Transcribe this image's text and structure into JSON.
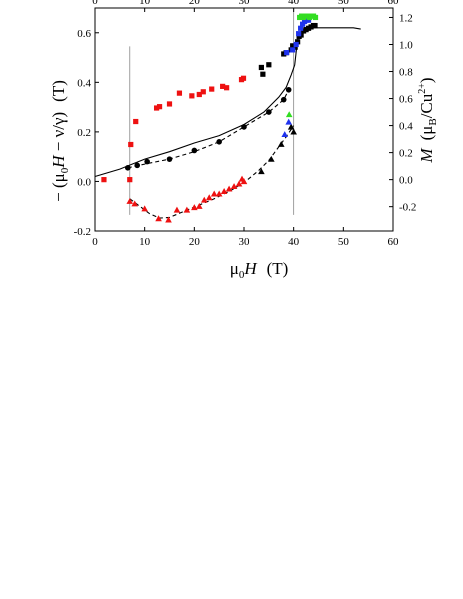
{
  "chart_data": {
    "type": "scatter",
    "title": "",
    "xlabel_parts": [
      "μ",
      "0",
      "H",
      "(T)"
    ],
    "ylabel_left_parts": [
      "− (μ",
      "0",
      "H",
      " − ν/γ)",
      "(T)"
    ],
    "ylabel_right_parts": [
      "M",
      "(μ",
      "B",
      "/Cu",
      "2+",
      ")"
    ],
    "xlim": [
      0,
      60
    ],
    "ylim": [
      -0.2,
      0.7
    ],
    "y2lim": [
      -0.38,
      1.27
    ],
    "x_ticks": [
      "0",
      "10",
      "20",
      "30",
      "40",
      "50",
      "60"
    ],
    "top_ticks": [
      "0",
      "10",
      "20",
      "30",
      "40",
      "50",
      "60"
    ],
    "y_ticks": [
      "-0.2",
      "0.0",
      "0.2",
      "0.4",
      "0.6"
    ],
    "y2_ticks": [
      "-0.2",
      "0.0",
      "0.2",
      "0.4",
      "0.6",
      "0.8",
      "1.0",
      "1.2"
    ],
    "vertical_lines": [
      7,
      40
    ],
    "grid": false,
    "colors": {
      "red": "#ee1111",
      "black": "#000000",
      "blue": "#1f33ee",
      "green": "#33dd22"
    },
    "series": [
      {
        "marker": "square",
        "axis": "right",
        "color": "#ee1111",
        "points": [
          [
            1.8,
            0.0
          ],
          [
            7.0,
            0.0
          ],
          [
            7.2,
            0.26
          ],
          [
            8.2,
            0.43
          ],
          [
            12.4,
            0.53
          ],
          [
            13.0,
            0.54
          ],
          [
            15.0,
            0.56
          ],
          [
            17.0,
            0.64
          ],
          [
            19.5,
            0.62
          ],
          [
            21.0,
            0.63
          ],
          [
            21.8,
            0.65
          ],
          [
            23.5,
            0.67
          ],
          [
            25.7,
            0.69
          ],
          [
            26.5,
            0.68
          ],
          [
            29.5,
            0.74
          ],
          [
            29.9,
            0.75
          ]
        ]
      },
      {
        "marker": "square",
        "axis": "right",
        "color": "#000000",
        "points": [
          [
            33.5,
            0.83
          ],
          [
            33.8,
            0.78
          ],
          [
            35.0,
            0.85
          ],
          [
            38.0,
            0.93
          ],
          [
            38.5,
            0.94
          ],
          [
            39.5,
            0.96
          ],
          [
            39.8,
            0.99
          ],
          [
            40.3,
            0.98
          ],
          [
            40.8,
            1.02
          ],
          [
            41.1,
            1.06
          ],
          [
            41.5,
            1.07
          ],
          [
            42.0,
            1.1
          ],
          [
            42.5,
            1.11
          ],
          [
            43.0,
            1.12
          ],
          [
            43.5,
            1.13
          ],
          [
            44.0,
            1.14
          ],
          [
            44.3,
            1.14
          ]
        ]
      },
      {
        "marker": "square",
        "axis": "right",
        "color": "#1f33ee",
        "points": [
          [
            38.6,
            0.94
          ],
          [
            39.8,
            0.96
          ],
          [
            40.5,
            1.0
          ],
          [
            41.0,
            1.08
          ],
          [
            41.4,
            1.12
          ],
          [
            41.8,
            1.15
          ],
          [
            42.2,
            1.17
          ],
          [
            42.6,
            1.18
          ],
          [
            43.0,
            1.18
          ]
        ]
      },
      {
        "marker": "square",
        "axis": "right",
        "color": "#33dd22",
        "points": [
          [
            41.2,
            1.2
          ],
          [
            41.6,
            1.21
          ],
          [
            42.0,
            1.2
          ],
          [
            42.4,
            1.21
          ],
          [
            42.8,
            1.21
          ],
          [
            43.2,
            1.2
          ],
          [
            43.6,
            1.21
          ],
          [
            44.0,
            1.21
          ],
          [
            44.4,
            1.2
          ]
        ]
      },
      {
        "marker": "circle",
        "axis": "left",
        "color": "#000000",
        "points": [
          [
            6.6,
            0.055
          ],
          [
            8.5,
            0.065
          ],
          [
            10.5,
            0.08
          ],
          [
            15.0,
            0.09
          ],
          [
            20.0,
            0.125
          ],
          [
            25.0,
            0.16
          ],
          [
            30.0,
            0.22
          ],
          [
            35.0,
            0.28
          ],
          [
            38.0,
            0.33
          ],
          [
            39.0,
            0.37
          ]
        ]
      },
      {
        "marker": "triangle",
        "axis": "left",
        "color": "#ee1111",
        "points": [
          [
            7.0,
            -0.08
          ],
          [
            8.0,
            -0.09
          ],
          [
            10.0,
            -0.11
          ],
          [
            12.8,
            -0.15
          ],
          [
            14.8,
            -0.155
          ],
          [
            16.5,
            -0.115
          ],
          [
            18.5,
            -0.115
          ],
          [
            20.0,
            -0.105
          ],
          [
            21.0,
            -0.1
          ],
          [
            22.0,
            -0.075
          ],
          [
            23.0,
            -0.065
          ],
          [
            24.0,
            -0.05
          ],
          [
            25.0,
            -0.05
          ],
          [
            26.0,
            -0.04
          ],
          [
            27.0,
            -0.03
          ],
          [
            28.0,
            -0.02
          ],
          [
            29.0,
            -0.01
          ],
          [
            29.6,
            0.01
          ],
          [
            30.0,
            0.0
          ]
        ]
      },
      {
        "marker": "triangle",
        "axis": "left",
        "color": "#000000",
        "points": [
          [
            33.5,
            0.04
          ],
          [
            35.5,
            0.09
          ],
          [
            37.5,
            0.15
          ],
          [
            39.5,
            0.22
          ],
          [
            40.0,
            0.2
          ]
        ]
      },
      {
        "marker": "triangle",
        "axis": "left",
        "color": "#1f33ee",
        "points": [
          [
            38.2,
            0.19
          ],
          [
            39.0,
            0.24
          ]
        ]
      },
      {
        "marker": "triangle",
        "axis": "left",
        "color": "#33dd22",
        "points": [
          [
            39.1,
            0.27
          ]
        ]
      }
    ],
    "lines": [
      {
        "style": "solid",
        "axis": "left",
        "color": "#000000",
        "points": [
          [
            0,
            0.02
          ],
          [
            5,
            0.05
          ],
          [
            10,
            0.09
          ],
          [
            15,
            0.12
          ],
          [
            20,
            0.155
          ],
          [
            25,
            0.185
          ],
          [
            30,
            0.23
          ],
          [
            34,
            0.28
          ],
          [
            37,
            0.34
          ],
          [
            38.5,
            0.38
          ],
          [
            39.5,
            0.43
          ],
          [
            40.2,
            0.47
          ],
          [
            40.5,
            0.52
          ],
          [
            40.8,
            0.57
          ],
          [
            41.2,
            0.6
          ],
          [
            42,
            0.615
          ],
          [
            44,
            0.62
          ],
          [
            46,
            0.62
          ],
          [
            48,
            0.62
          ],
          [
            50,
            0.62
          ],
          [
            52,
            0.62
          ],
          [
            53.5,
            0.615
          ]
        ]
      },
      {
        "style": "dashed",
        "axis": "left",
        "color": "#000000",
        "points": [
          [
            6.6,
            0.055
          ],
          [
            10,
            0.07
          ],
          [
            15,
            0.09
          ],
          [
            20,
            0.12
          ],
          [
            25,
            0.16
          ],
          [
            30,
            0.22
          ],
          [
            35,
            0.28
          ],
          [
            38,
            0.33
          ],
          [
            39,
            0.37
          ]
        ]
      },
      {
        "style": "dashed",
        "axis": "left",
        "color": "#000000",
        "points": [
          [
            7,
            -0.07
          ],
          [
            9,
            -0.1
          ],
          [
            11,
            -0.13
          ],
          [
            13,
            -0.148
          ],
          [
            15,
            -0.145
          ],
          [
            18,
            -0.12
          ],
          [
            21,
            -0.095
          ],
          [
            24,
            -0.07
          ],
          [
            27,
            -0.04
          ],
          [
            30,
            -0.005
          ],
          [
            33,
            0.045
          ],
          [
            35,
            0.085
          ],
          [
            37,
            0.14
          ],
          [
            38.5,
            0.18
          ],
          [
            39.5,
            0.21
          ],
          [
            40,
            0.225
          ]
        ]
      }
    ]
  }
}
